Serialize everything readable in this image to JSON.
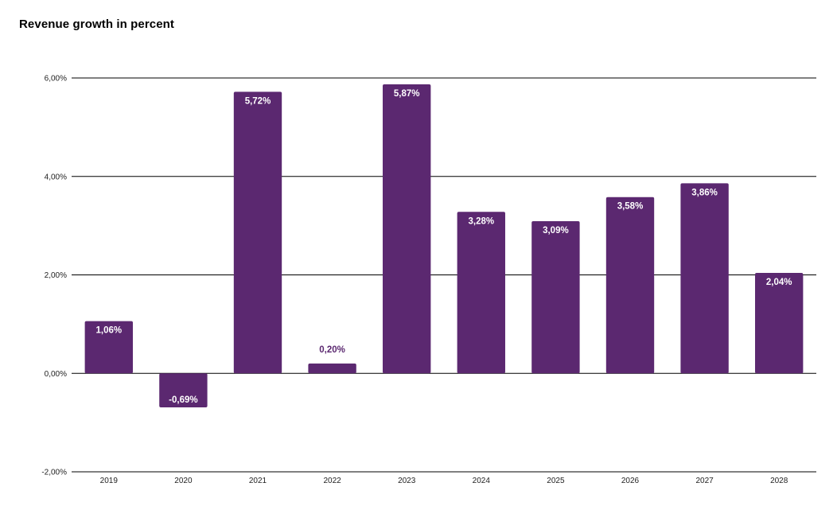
{
  "chart_data": {
    "type": "bar",
    "title": "Revenue growth in percent",
    "categories": [
      "2019",
      "2020",
      "2021",
      "2022",
      "2023",
      "2024",
      "2025",
      "2026",
      "2027",
      "2028"
    ],
    "values": [
      1.06,
      -0.69,
      5.72,
      0.2,
      5.87,
      3.28,
      3.09,
      3.58,
      3.86,
      2.04
    ],
    "value_labels": [
      "1,06%",
      "-0,69%",
      "5,72%",
      "0,20%",
      "5,87%",
      "3,28%",
      "3,09%",
      "3,58%",
      "3,86%",
      "2,04%"
    ],
    "ylim": [
      -2,
      6
    ],
    "yticks": [
      -2,
      0,
      2,
      4,
      6
    ],
    "ytick_labels": [
      "-2,00%",
      "0,00%",
      "2,00%",
      "4,00%",
      "6,00%"
    ],
    "grid": true,
    "bar_color": "#5b2870",
    "label_inside_color": "#ffffff",
    "label_outside_color": "#5b2870"
  }
}
